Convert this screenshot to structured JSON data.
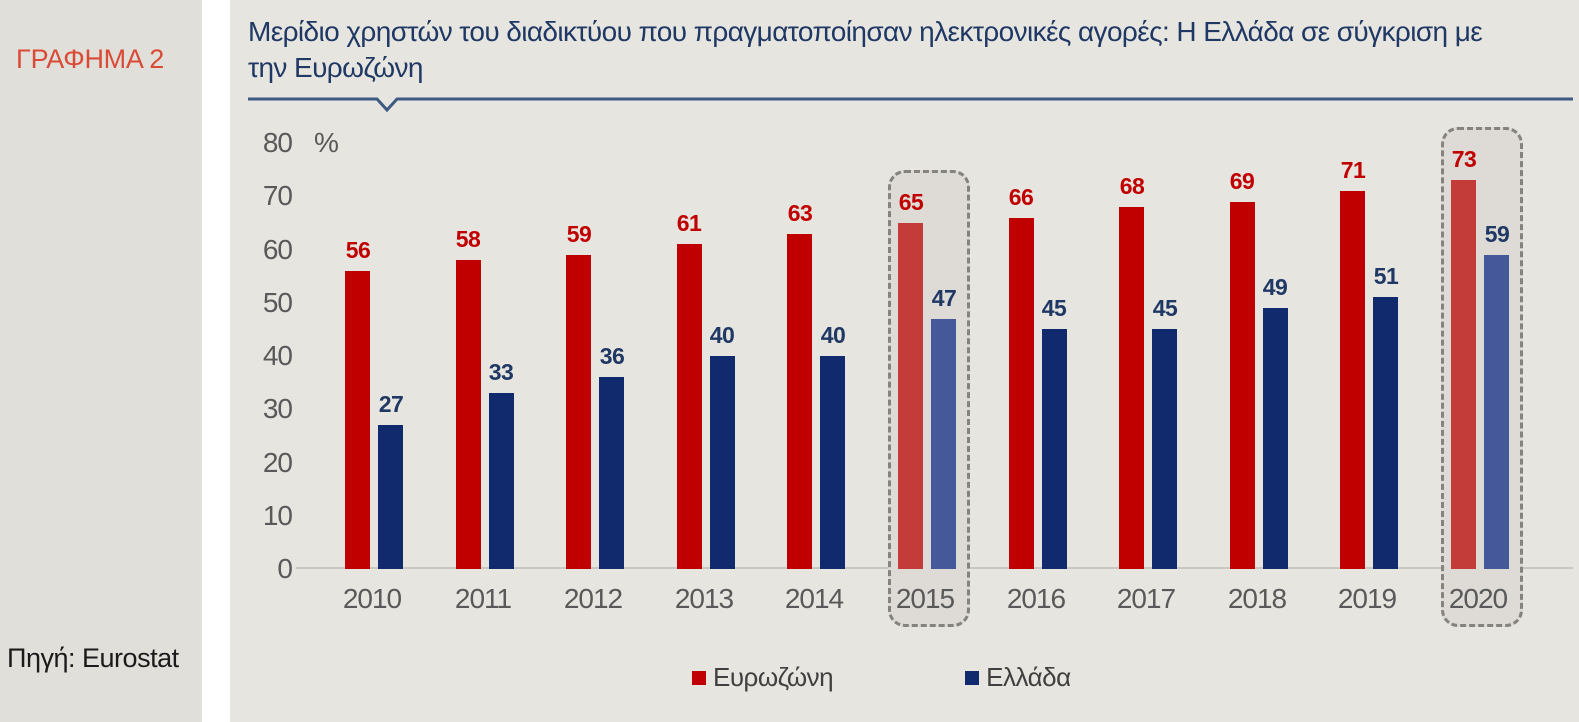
{
  "sidebar": {
    "chart_number": "ΓΡΑΦΗΜΑ 2",
    "source": "Πηγή: Eurostat"
  },
  "title": "Μερίδιο χρηστών του διαδικτύου που πραγματοποίησαν ηλεκτρονικές αγορές: Η Ελλάδα σε σύγκριση με την Ευρωζώνη",
  "title_lines": [
    "Μερίδιο χρηστών του διαδικτύου που πραγματοποίησαν ηλεκτρονικές αγορές: Η Ελλάδα σε σύγκριση με",
    "την Ευρωζώνη"
  ],
  "chart_data": {
    "type": "bar",
    "title": "Μερίδιο χρηστών του διαδικτύου που πραγματοποίησαν ηλεκτρονικές αγορές: Η Ελλάδα σε σύγκριση με την Ευρωζώνη",
    "categories": [
      "2010",
      "2011",
      "2012",
      "2013",
      "2014",
      "2015",
      "2016",
      "2017",
      "2018",
      "2019",
      "2020"
    ],
    "series": [
      {
        "name": "Ευρωζώνη",
        "values": [
          56,
          58,
          59,
          61,
          63,
          65,
          66,
          68,
          69,
          71,
          73
        ],
        "color": "#c00000",
        "highlight_color": "#c43c3a",
        "label_color": "#c00000"
      },
      {
        "name": "Ελλάδα",
        "values": [
          27,
          33,
          36,
          40,
          40,
          47,
          45,
          45,
          49,
          51,
          59
        ],
        "color": "#112a6e",
        "highlight_color": "#44589a",
        "label_color": "#1f3864"
      }
    ],
    "highlighted_categories": [
      "2015",
      "2020"
    ],
    "ylabel": "%",
    "y_ticks": [
      0,
      10,
      20,
      30,
      40,
      50,
      60,
      70,
      80
    ],
    "ylim": [
      0,
      80
    ],
    "grid": false,
    "legend_position": "bottom",
    "data_labels": true
  },
  "colors": {
    "sidebar_bg": "#e1dfd9",
    "main_bg": "#e7e5e0",
    "title_text": "#1f3864",
    "underline": "#3e5a82",
    "chart_number_text": "#d94b36",
    "axis_text": "#595959",
    "axis_line": "#c9c7c2",
    "highlight_fill": "#dedbd6",
    "highlight_border": "#85837f",
    "legend_text": "#404040"
  }
}
